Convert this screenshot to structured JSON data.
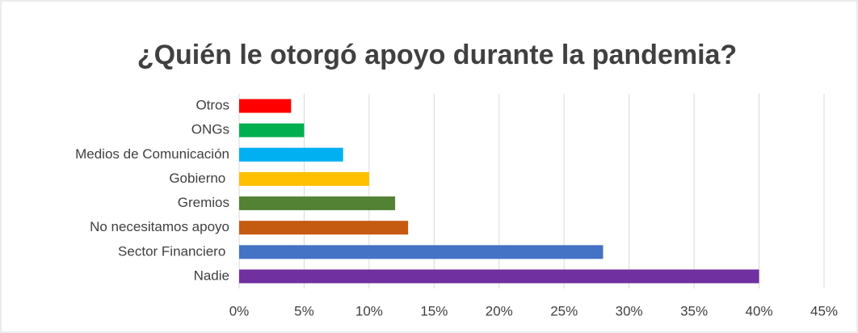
{
  "chart_data": {
    "type": "bar",
    "orientation": "horizontal",
    "title": "¿Quién le otorgó apoyo durante la pandemia?",
    "categories": [
      "Otros",
      "ONGs",
      "Medios de Comunicación",
      "Gobierno ",
      "Gremios",
      "No necesitamos apoyo",
      "Sector Financiero ",
      "Nadie"
    ],
    "values": [
      4,
      5,
      8,
      10,
      12,
      13,
      28,
      40
    ],
    "colors": [
      "#ff0000",
      "#00b050",
      "#00b0f0",
      "#ffc000",
      "#548235",
      "#c55a11",
      "#4472c4",
      "#7030a0"
    ],
    "xlim": [
      0,
      45
    ],
    "xticks": [
      {
        "value": 0,
        "label": "0%"
      },
      {
        "value": 5,
        "label": "5%"
      },
      {
        "value": 10,
        "label": "10%"
      },
      {
        "value": 15,
        "label": "15%"
      },
      {
        "value": 20,
        "label": "20%"
      },
      {
        "value": 25,
        "label": "25%"
      },
      {
        "value": 30,
        "label": "30%"
      },
      {
        "value": 35,
        "label": "35%"
      },
      {
        "value": 40,
        "label": "40%"
      },
      {
        "value": 45,
        "label": "45%"
      }
    ],
    "grid": true
  }
}
